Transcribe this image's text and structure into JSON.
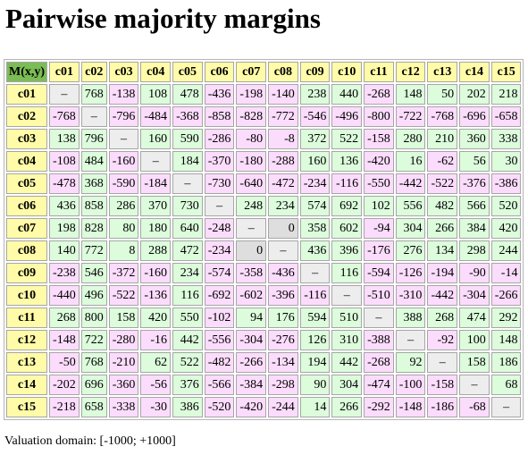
{
  "title": "Pairwise majority margins",
  "corner_label": "M(x,y)",
  "columns": [
    "c01",
    "c02",
    "c03",
    "c04",
    "c05",
    "c06",
    "c07",
    "c08",
    "c09",
    "c10",
    "c11",
    "c12",
    "c13",
    "c14",
    "c15"
  ],
  "diagonal_symbol": "–",
  "rows": [
    {
      "label": "c01",
      "values": [
        null,
        768,
        -138,
        108,
        478,
        -436,
        -198,
        -140,
        238,
        440,
        -268,
        148,
        50,
        202,
        218
      ]
    },
    {
      "label": "c02",
      "values": [
        -768,
        null,
        -796,
        -484,
        -368,
        -858,
        -828,
        -772,
        -546,
        -496,
        -800,
        -722,
        -768,
        -696,
        -658
      ]
    },
    {
      "label": "c03",
      "values": [
        138,
        796,
        null,
        160,
        590,
        -286,
        -80,
        -8,
        372,
        522,
        -158,
        280,
        210,
        360,
        338
      ]
    },
    {
      "label": "c04",
      "values": [
        -108,
        484,
        -160,
        null,
        184,
        -370,
        -180,
        -288,
        160,
        136,
        -420,
        16,
        -62,
        56,
        30
      ]
    },
    {
      "label": "c05",
      "values": [
        -478,
        368,
        -590,
        -184,
        null,
        -730,
        -640,
        -472,
        -234,
        -116,
        -550,
        -442,
        -522,
        -376,
        -386
      ]
    },
    {
      "label": "c06",
      "values": [
        436,
        858,
        286,
        370,
        730,
        null,
        248,
        234,
        574,
        692,
        102,
        556,
        482,
        566,
        520
      ]
    },
    {
      "label": "c07",
      "values": [
        198,
        828,
        80,
        180,
        640,
        -248,
        null,
        0,
        358,
        602,
        -94,
        304,
        266,
        384,
        420
      ]
    },
    {
      "label": "c08",
      "values": [
        140,
        772,
        8,
        288,
        472,
        -234,
        0,
        null,
        436,
        396,
        -176,
        276,
        134,
        298,
        244
      ]
    },
    {
      "label": "c09",
      "values": [
        -238,
        546,
        -372,
        -160,
        234,
        -574,
        -358,
        -436,
        null,
        116,
        -594,
        -126,
        -194,
        -90,
        -14
      ]
    },
    {
      "label": "c10",
      "values": [
        -440,
        496,
        -522,
        -136,
        116,
        -692,
        -602,
        -396,
        -116,
        null,
        -510,
        -310,
        -442,
        -304,
        -266
      ]
    },
    {
      "label": "c11",
      "values": [
        268,
        800,
        158,
        420,
        550,
        -102,
        94,
        176,
        594,
        510,
        null,
        388,
        268,
        474,
        292
      ]
    },
    {
      "label": "c12",
      "values": [
        -148,
        722,
        -280,
        -16,
        442,
        -556,
        -304,
        -276,
        126,
        310,
        -388,
        null,
        -92,
        100,
        148
      ]
    },
    {
      "label": "c13",
      "values": [
        -50,
        768,
        -210,
        62,
        522,
        -482,
        -266,
        -134,
        194,
        442,
        -268,
        92,
        null,
        158,
        186
      ]
    },
    {
      "label": "c14",
      "values": [
        -202,
        696,
        -360,
        -56,
        376,
        -566,
        -384,
        -298,
        90,
        304,
        -474,
        -100,
        -158,
        null,
        68
      ]
    },
    {
      "label": "c15",
      "values": [
        -218,
        658,
        -338,
        -30,
        386,
        -520,
        -420,
        -244,
        14,
        266,
        -292,
        -148,
        -186,
        -68,
        null
      ]
    }
  ],
  "footer": "Valuation domain: [-1000; +1000]",
  "colors": {
    "positive": "#dcfcdc",
    "negative": "#fcdcfc",
    "zero": "#dedede",
    "header": "#fffba8",
    "corner": "#7bbd55"
  }
}
